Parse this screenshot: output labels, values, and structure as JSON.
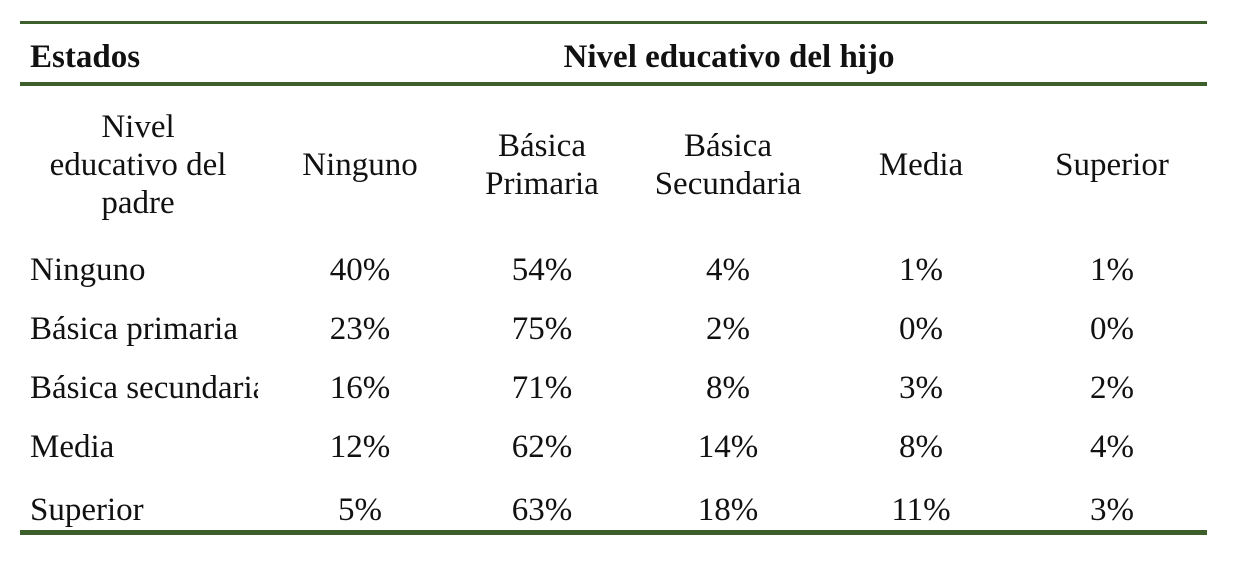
{
  "header": {
    "estados": "Estados",
    "nivel_hijo": "Nivel educativo del hijo"
  },
  "columns": {
    "row_header_lines": [
      "Nivel",
      "educativo del",
      "padre"
    ],
    "c1_lines": [
      "Ninguno"
    ],
    "c2_lines": [
      "Básica",
      "Primaria"
    ],
    "c3_lines": [
      "Básica",
      "Secundaria"
    ],
    "c4_lines": [
      "Media"
    ],
    "c5_lines": [
      "Superior"
    ]
  },
  "rows": [
    {
      "label": "Ninguno",
      "values": [
        "40%",
        "54%",
        "4%",
        "1%",
        "1%"
      ]
    },
    {
      "label": "Básica primaria",
      "values": [
        "23%",
        "75%",
        "2%",
        "0%",
        "0%"
      ]
    },
    {
      "label": "Básica secundaria",
      "values": [
        "16%",
        "71%",
        "8%",
        "3%",
        "2%"
      ]
    },
    {
      "label": "Media",
      "values": [
        "12%",
        "62%",
        "14%",
        "8%",
        "4%"
      ]
    },
    {
      "label": "Superior",
      "values": [
        "5%",
        "63%",
        "18%",
        "11%",
        "3%"
      ]
    }
  ],
  "colors": {
    "rule": "#3d5f2c"
  }
}
